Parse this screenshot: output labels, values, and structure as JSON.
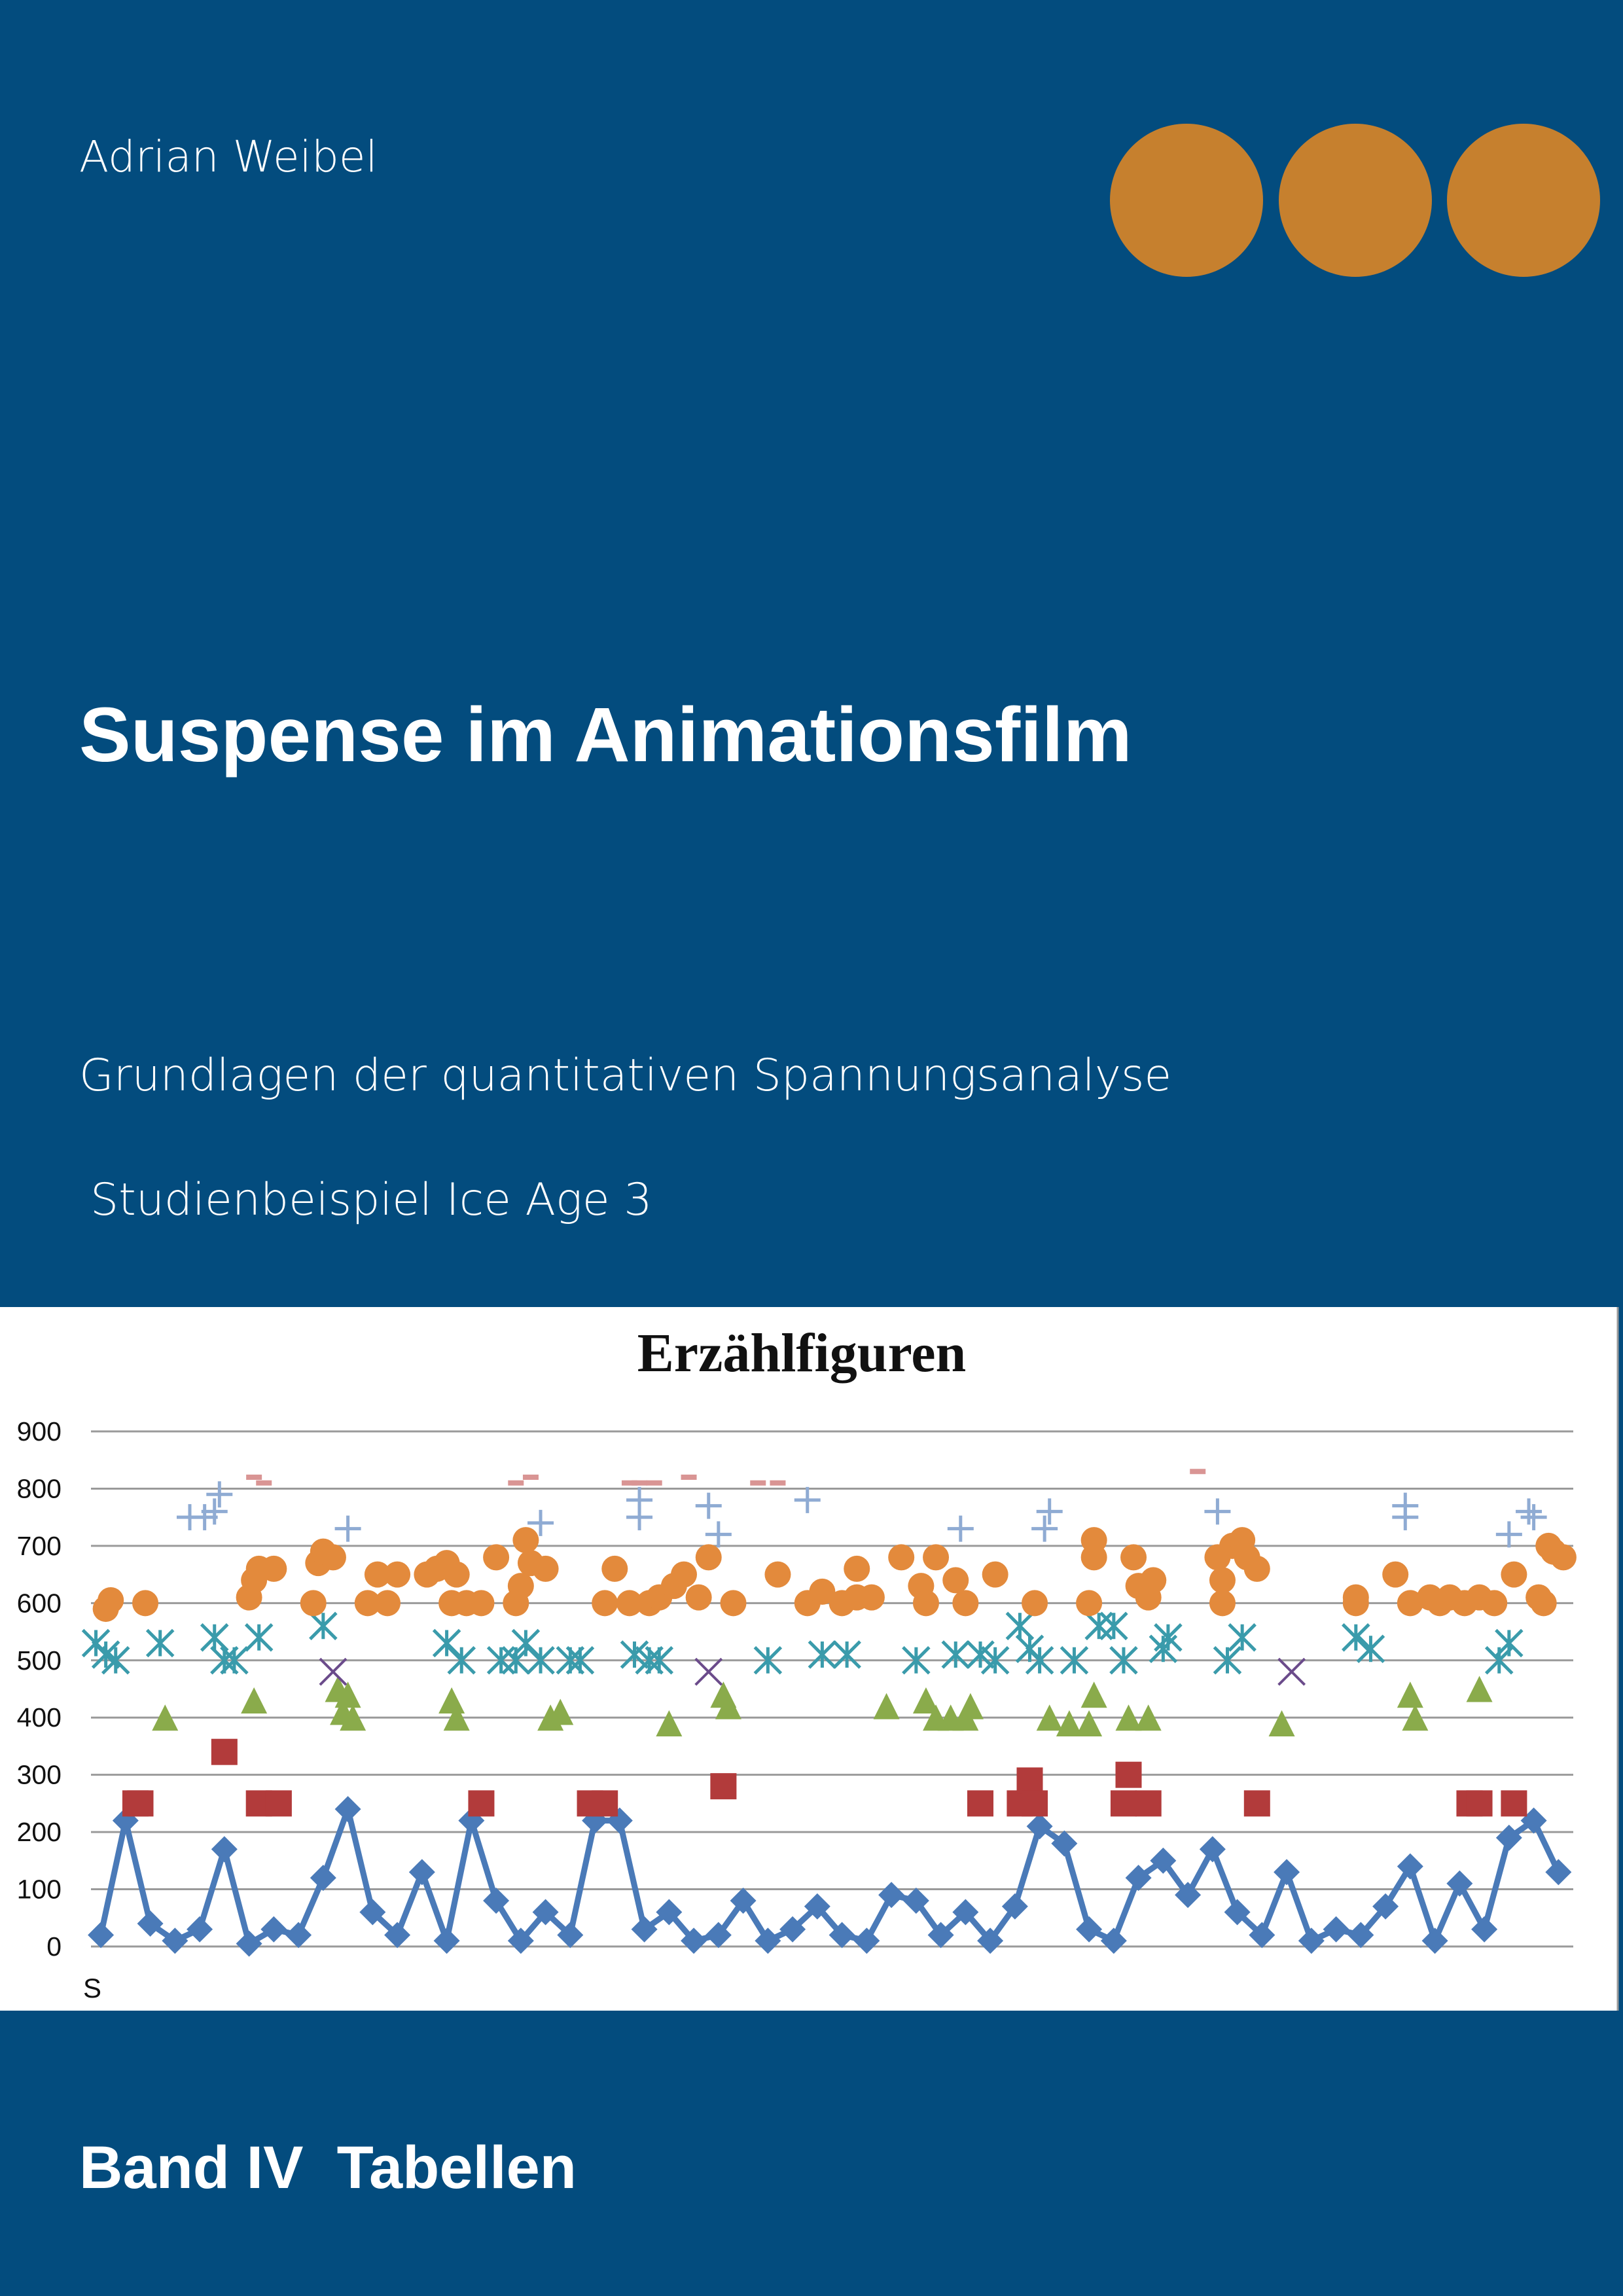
{
  "header": {
    "author": "Adrian Weibel",
    "title": "Suspense im Animationsfilm",
    "subtitle": "Grundlagen der quantitativen Spannungsanalyse",
    "example": "Studienbeispiel Ice Age 3"
  },
  "footer": {
    "band": "Band IV  Tabellen"
  },
  "chart_data": {
    "type": "scatter",
    "title": "Erzählfiguren",
    "x_label": "S",
    "xlim": [
      0,
      300
    ],
    "ylim": [
      0,
      900
    ],
    "yticks": [
      0,
      100,
      200,
      300,
      400,
      500,
      600,
      700,
      800,
      900
    ],
    "grid": true,
    "series": [
      {
        "color": "#4a7ab8",
        "marker": "diamond",
        "line": true,
        "x": [
          2,
          7,
          12,
          17,
          22,
          27,
          32,
          37,
          42,
          47,
          52,
          57,
          62,
          67,
          72,
          77,
          82,
          87,
          92,
          97,
          102,
          107,
          112,
          117,
          122,
          127,
          132,
          137,
          142,
          147,
          152,
          157,
          162,
          167,
          172,
          177,
          182,
          187,
          192,
          197,
          202,
          207,
          212,
          217,
          222,
          227,
          232,
          237,
          242,
          247,
          252,
          257,
          262,
          267,
          272,
          277,
          282,
          287,
          292,
          297
        ],
        "values": [
          20,
          220,
          40,
          10,
          30,
          170,
          5,
          30,
          20,
          120,
          240,
          60,
          20,
          130,
          10,
          220,
          80,
          10,
          60,
          20,
          220,
          220,
          30,
          60,
          10,
          20,
          80,
          10,
          30,
          70,
          20,
          10,
          90,
          80,
          20,
          60,
          10,
          70,
          210,
          180,
          30,
          10,
          120,
          150,
          90,
          170,
          60,
          20,
          130,
          10,
          30,
          20,
          70,
          140,
          10,
          110,
          30,
          190,
          220,
          130
        ]
      },
      {
        "color": "#b23b3b",
        "marker": "square",
        "line": false,
        "x": [
          9,
          10,
          27,
          34,
          38,
          79,
          101,
          104,
          128,
          180,
          188,
          190,
          191,
          209,
          210,
          214,
          236,
          279,
          281,
          288
        ],
        "values": [
          250,
          250,
          340,
          250,
          250,
          250,
          250,
          250,
          280,
          250,
          250,
          290,
          250,
          250,
          300,
          250,
          250,
          250,
          250,
          250
        ]
      },
      {
        "color": "#8aab4b",
        "marker": "triangle",
        "line": false,
        "x": [
          15,
          33,
          50,
          51,
          52,
          53,
          73,
          74,
          93,
          95,
          117,
          128,
          129,
          161,
          169,
          171,
          174,
          177,
          178,
          194,
          198,
          202,
          203,
          210,
          214,
          241,
          267,
          268,
          281
        ],
        "values": [
          400,
          430,
          450,
          410,
          440,
          400,
          430,
          400,
          400,
          410,
          390,
          440,
          420,
          420,
          430,
          400,
          400,
          400,
          420,
          400,
          390,
          390,
          440,
          400,
          400,
          390,
          440,
          400,
          450
        ]
      },
      {
        "color": "#3a9bab",
        "marker": "asterisk",
        "line": false,
        "x": [
          1,
          3,
          5,
          14,
          25,
          27,
          29,
          34,
          47,
          72,
          75,
          83,
          86,
          88,
          91,
          97,
          99,
          110,
          113,
          115,
          137,
          148,
          153,
          167,
          175,
          180,
          183,
          188,
          190,
          192,
          199,
          204,
          207,
          209,
          217,
          218,
          230,
          233,
          256,
          259,
          285,
          287
        ],
        "values": [
          530,
          510,
          500,
          530,
          540,
          500,
          500,
          540,
          560,
          530,
          500,
          500,
          500,
          530,
          500,
          500,
          500,
          510,
          500,
          500,
          500,
          510,
          510,
          500,
          510,
          510,
          500,
          560,
          520,
          500,
          500,
          560,
          560,
          500,
          520,
          540,
          500,
          540,
          540,
          520,
          500,
          530
        ]
      },
      {
        "color": "#6b4b8b",
        "marker": "cross",
        "line": false,
        "x": [
          49,
          125,
          243
        ],
        "values": [
          480,
          480,
          480
        ]
      },
      {
        "color": "#e38a3c",
        "marker": "circle",
        "line": false,
        "x": [
          3,
          4,
          11,
          32,
          33,
          34,
          37,
          45,
          46,
          47,
          49,
          56,
          58,
          60,
          62,
          68,
          70,
          72,
          73,
          74,
          76,
          79,
          82,
          86,
          87,
          88,
          89,
          92,
          104,
          106,
          109,
          113,
          115,
          118,
          120,
          123,
          125,
          130,
          139,
          145,
          148,
          152,
          155,
          155,
          158,
          164,
          168,
          169,
          171,
          175,
          177,
          183,
          191,
          202,
          203,
          203,
          211,
          212,
          214,
          215,
          228,
          229,
          229,
          231,
          233,
          234,
          236,
          256,
          256,
          264,
          267,
          271,
          273,
          275,
          278,
          281,
          284,
          288,
          293,
          294,
          295,
          296,
          298
        ],
        "values": [
          590,
          605,
          600,
          610,
          640,
          660,
          660,
          600,
          670,
          690,
          680,
          600,
          650,
          600,
          650,
          650,
          660,
          670,
          600,
          650,
          600,
          600,
          680,
          600,
          630,
          710,
          670,
          660,
          600,
          660,
          600,
          600,
          610,
          630,
          650,
          610,
          680,
          600,
          650,
          600,
          620,
          600,
          610,
          660,
          610,
          680,
          630,
          600,
          680,
          640,
          600,
          650,
          600,
          600,
          710,
          680,
          680,
          630,
          610,
          640,
          680,
          640,
          600,
          700,
          710,
          680,
          660,
          610,
          600,
          650,
          600,
          610,
          600,
          610,
          600,
          610,
          600,
          650,
          610,
          600,
          700,
          690,
          680
        ]
      },
      {
        "color": "#8fabd3",
        "marker": "plus",
        "line": false,
        "x": [
          20,
          23,
          25,
          26,
          52,
          91,
          111,
          111,
          125,
          127,
          145,
          176,
          193,
          194,
          228,
          266,
          266,
          287,
          291,
          292
        ],
        "values": [
          750,
          750,
          760,
          790,
          730,
          740,
          750,
          780,
          770,
          720,
          780,
          730,
          730,
          760,
          760,
          750,
          770,
          720,
          760,
          750
        ]
      },
      {
        "color": "#d99594",
        "marker": "dash",
        "line": false,
        "x": [
          33,
          35,
          86,
          89,
          109,
          111,
          114,
          121,
          135,
          139,
          224
        ],
        "values": [
          820,
          810,
          810,
          820,
          810,
          810,
          810,
          820,
          810,
          810,
          830
        ]
      }
    ]
  }
}
